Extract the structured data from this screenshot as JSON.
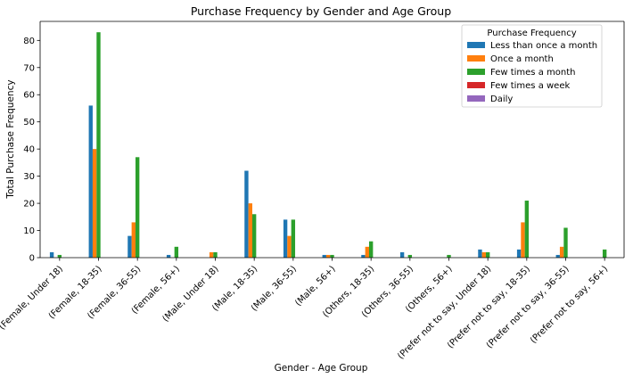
{
  "chart_data": {
    "type": "bar",
    "title": "Purchase Frequency by Gender and Age Group",
    "xlabel": "Gender - Age Group",
    "ylabel": "Total Purchase Frequency",
    "ylim": [
      0,
      87
    ],
    "yticks": [
      0,
      10,
      20,
      30,
      40,
      50,
      60,
      70,
      80
    ],
    "grid": false,
    "legend": {
      "title": "Purchase Frequency",
      "position": "top-right"
    },
    "categories": [
      "(Female, Under 18)",
      "(Female, 18-35)",
      "(Female, 36-55)",
      "(Female, 56+)",
      "(Male, Under 18)",
      "(Male, 18-35)",
      "(Male, 36-55)",
      "(Male, 56+)",
      "(Others, 18-35)",
      "(Others, 36-55)",
      "(Others, 56+)",
      "(Prefer not to say, Under 18)",
      "(Prefer not to say, 18-35)",
      "(Prefer not to say, 36-55)",
      "(Prefer not to say, 56+)"
    ],
    "series": [
      {
        "name": "Less than once a month",
        "color": "#1f77b4",
        "values": [
          2,
          56,
          8,
          1,
          0,
          32,
          14,
          1,
          1,
          2,
          0,
          3,
          3,
          1,
          0
        ]
      },
      {
        "name": "Once a month",
        "color": "#ff7f0e",
        "values": [
          0,
          40,
          13,
          0,
          2,
          20,
          8,
          1,
          4,
          0,
          0,
          2,
          13,
          4,
          0
        ]
      },
      {
        "name": "Few times a month",
        "color": "#2ca02c",
        "values": [
          1,
          83,
          37,
          4,
          2,
          16,
          14,
          1,
          6,
          1,
          1,
          2,
          21,
          11,
          3
        ]
      },
      {
        "name": "Few times a week",
        "color": "#d62728",
        "values": [
          0,
          0,
          0,
          0,
          0,
          0,
          0,
          0,
          0,
          0,
          0,
          0,
          0,
          0,
          0
        ]
      },
      {
        "name": "Daily",
        "color": "#9467bd",
        "values": [
          0,
          0,
          0,
          0,
          0,
          0,
          0,
          0,
          0,
          0,
          0,
          0,
          0,
          0,
          0
        ]
      }
    ]
  }
}
